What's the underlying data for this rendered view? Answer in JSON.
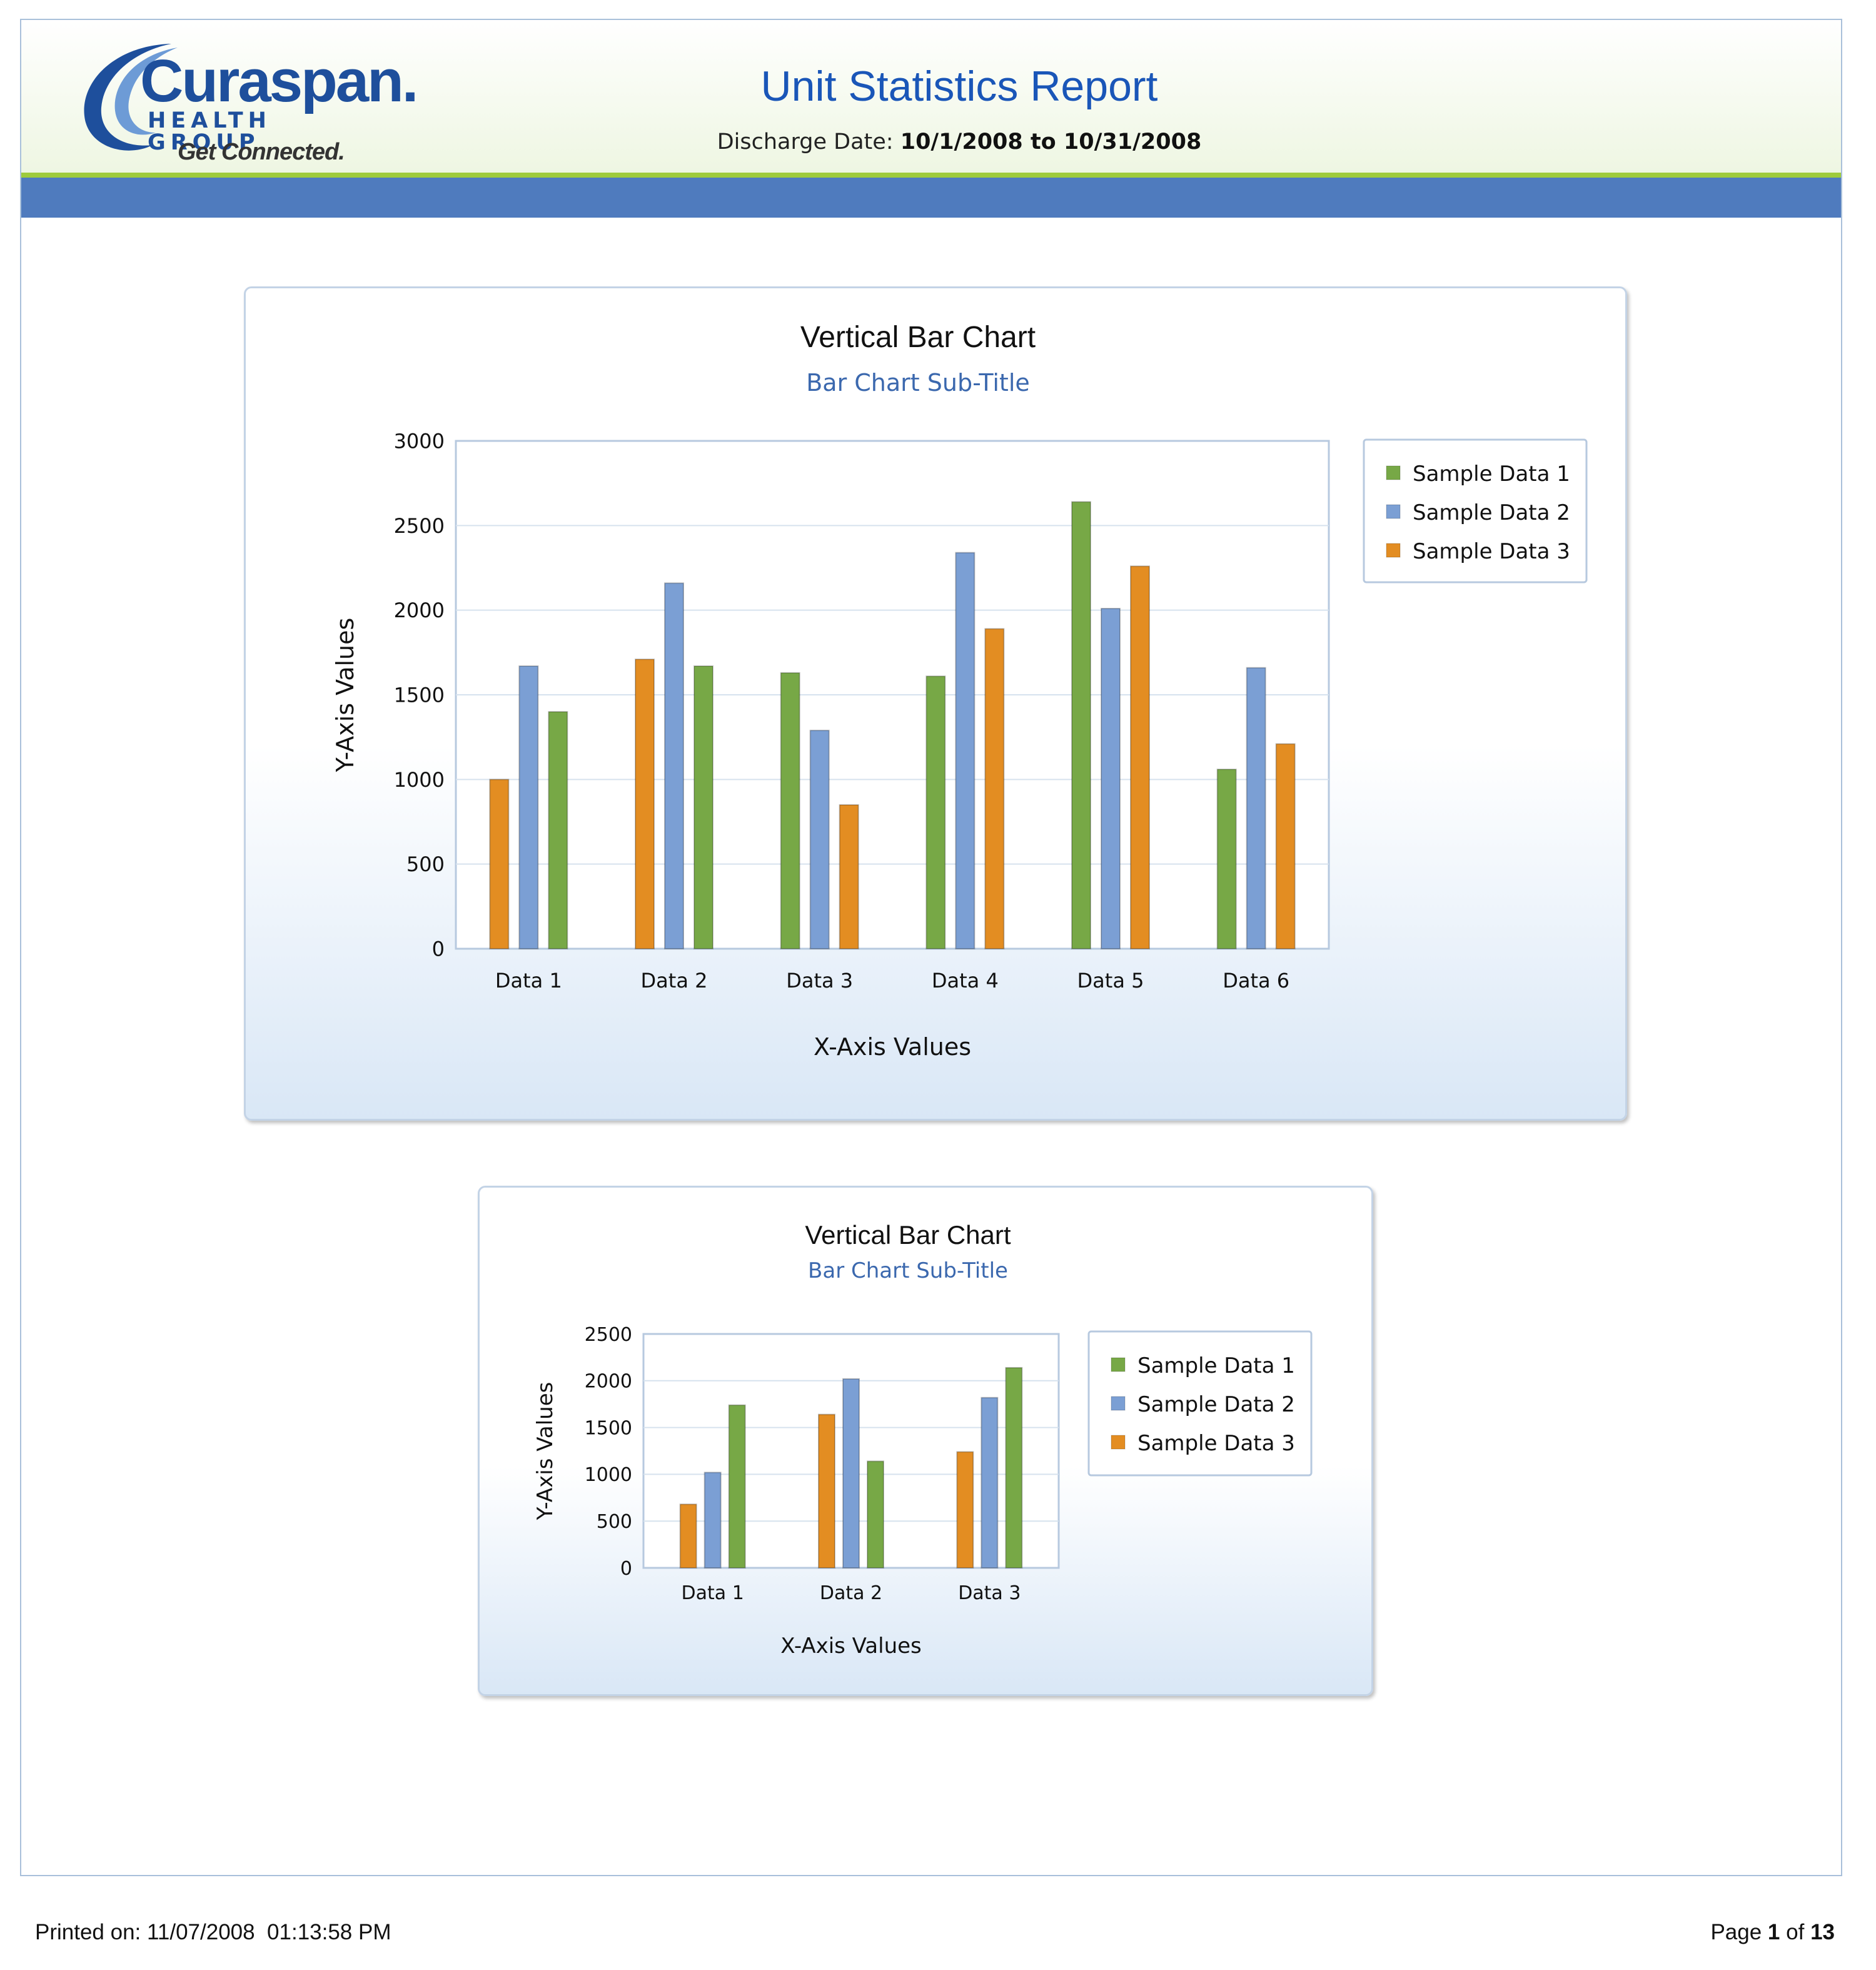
{
  "header": {
    "logo": {
      "name": "Curaspan.",
      "group": "HEALTH GROUP",
      "tagline": "Get Connected."
    },
    "title": "Unit Statistics Report",
    "date_label": "Discharge Date:",
    "date_range": "10/1/2008 to 10/31/2008"
  },
  "colors": {
    "title_blue": "#1a56b8",
    "band_blue": "#4f7bbe",
    "accent_green": "#9ecb3c",
    "series": [
      "#77a846",
      "#7b9fd4",
      "#e38d22"
    ]
  },
  "chart_data": [
    {
      "type": "bar",
      "title": "Vertical Bar Chart",
      "subtitle": "Bar Chart Sub-Title",
      "xlabel": "X-Axis Values",
      "ylabel": "Y-Axis Values",
      "ylim": [
        0,
        3000
      ],
      "yticks": [
        "0",
        "500",
        "1000",
        "1500",
        "2000",
        "2500",
        "3000"
      ],
      "grid": true,
      "legend_position": "right",
      "legend": [
        "Sample Data 1",
        "Sample Data 2",
        "Sample Data 3"
      ],
      "categories": [
        "Data 1",
        "Data 2",
        "Data 3",
        "Data 4",
        "Data 5",
        "Data 6"
      ],
      "groups": [
        {
          "category": "Data 1",
          "bars": [
            {
              "series": 3,
              "value": 1000
            },
            {
              "series": 2,
              "value": 1670
            },
            {
              "series": 1,
              "value": 1400
            }
          ]
        },
        {
          "category": "Data 2",
          "bars": [
            {
              "series": 3,
              "value": 1710
            },
            {
              "series": 2,
              "value": 2160
            },
            {
              "series": 1,
              "value": 1670
            }
          ]
        },
        {
          "category": "Data 3",
          "bars": [
            {
              "series": 1,
              "value": 1630
            },
            {
              "series": 2,
              "value": 1290
            },
            {
              "series": 3,
              "value": 850
            }
          ]
        },
        {
          "category": "Data 4",
          "bars": [
            {
              "series": 1,
              "value": 1610
            },
            {
              "series": 2,
              "value": 2340
            },
            {
              "series": 3,
              "value": 1890
            }
          ]
        },
        {
          "category": "Data 5",
          "bars": [
            {
              "series": 1,
              "value": 2640
            },
            {
              "series": 2,
              "value": 2010
            },
            {
              "series": 3,
              "value": 2260
            }
          ]
        },
        {
          "category": "Data 6",
          "bars": [
            {
              "series": 1,
              "value": 1060
            },
            {
              "series": 2,
              "value": 1660
            },
            {
              "series": 3,
              "value": 1210
            }
          ]
        }
      ]
    },
    {
      "type": "bar",
      "title": "Vertical Bar Chart",
      "subtitle": "Bar Chart Sub-Title",
      "xlabel": "X-Axis Values",
      "ylabel": "Y-Axis Values",
      "ylim": [
        0,
        2500
      ],
      "yticks": [
        "0",
        "500",
        "1000",
        "1500",
        "2000",
        "2500"
      ],
      "grid": true,
      "legend_position": "right",
      "legend": [
        "Sample Data 1",
        "Sample Data 2",
        "Sample Data 3"
      ],
      "categories": [
        "Data 1",
        "Data 2",
        "Data 3"
      ],
      "groups": [
        {
          "category": "Data 1",
          "bars": [
            {
              "series": 3,
              "value": 680
            },
            {
              "series": 2,
              "value": 1020
            },
            {
              "series": 1,
              "value": 1740
            }
          ]
        },
        {
          "category": "Data 2",
          "bars": [
            {
              "series": 3,
              "value": 1640
            },
            {
              "series": 2,
              "value": 2020
            },
            {
              "series": 1,
              "value": 1140
            }
          ]
        },
        {
          "category": "Data 3",
          "bars": [
            {
              "series": 3,
              "value": 1240
            },
            {
              "series": 2,
              "value": 1820
            },
            {
              "series": 1,
              "value": 2140
            }
          ]
        }
      ]
    }
  ],
  "footer": {
    "printed_label": "Printed on:",
    "printed_value": "11/07/2008  01:13:58 PM",
    "page_label": "Page",
    "page_current": "1",
    "page_of": "of",
    "page_total": "13"
  }
}
